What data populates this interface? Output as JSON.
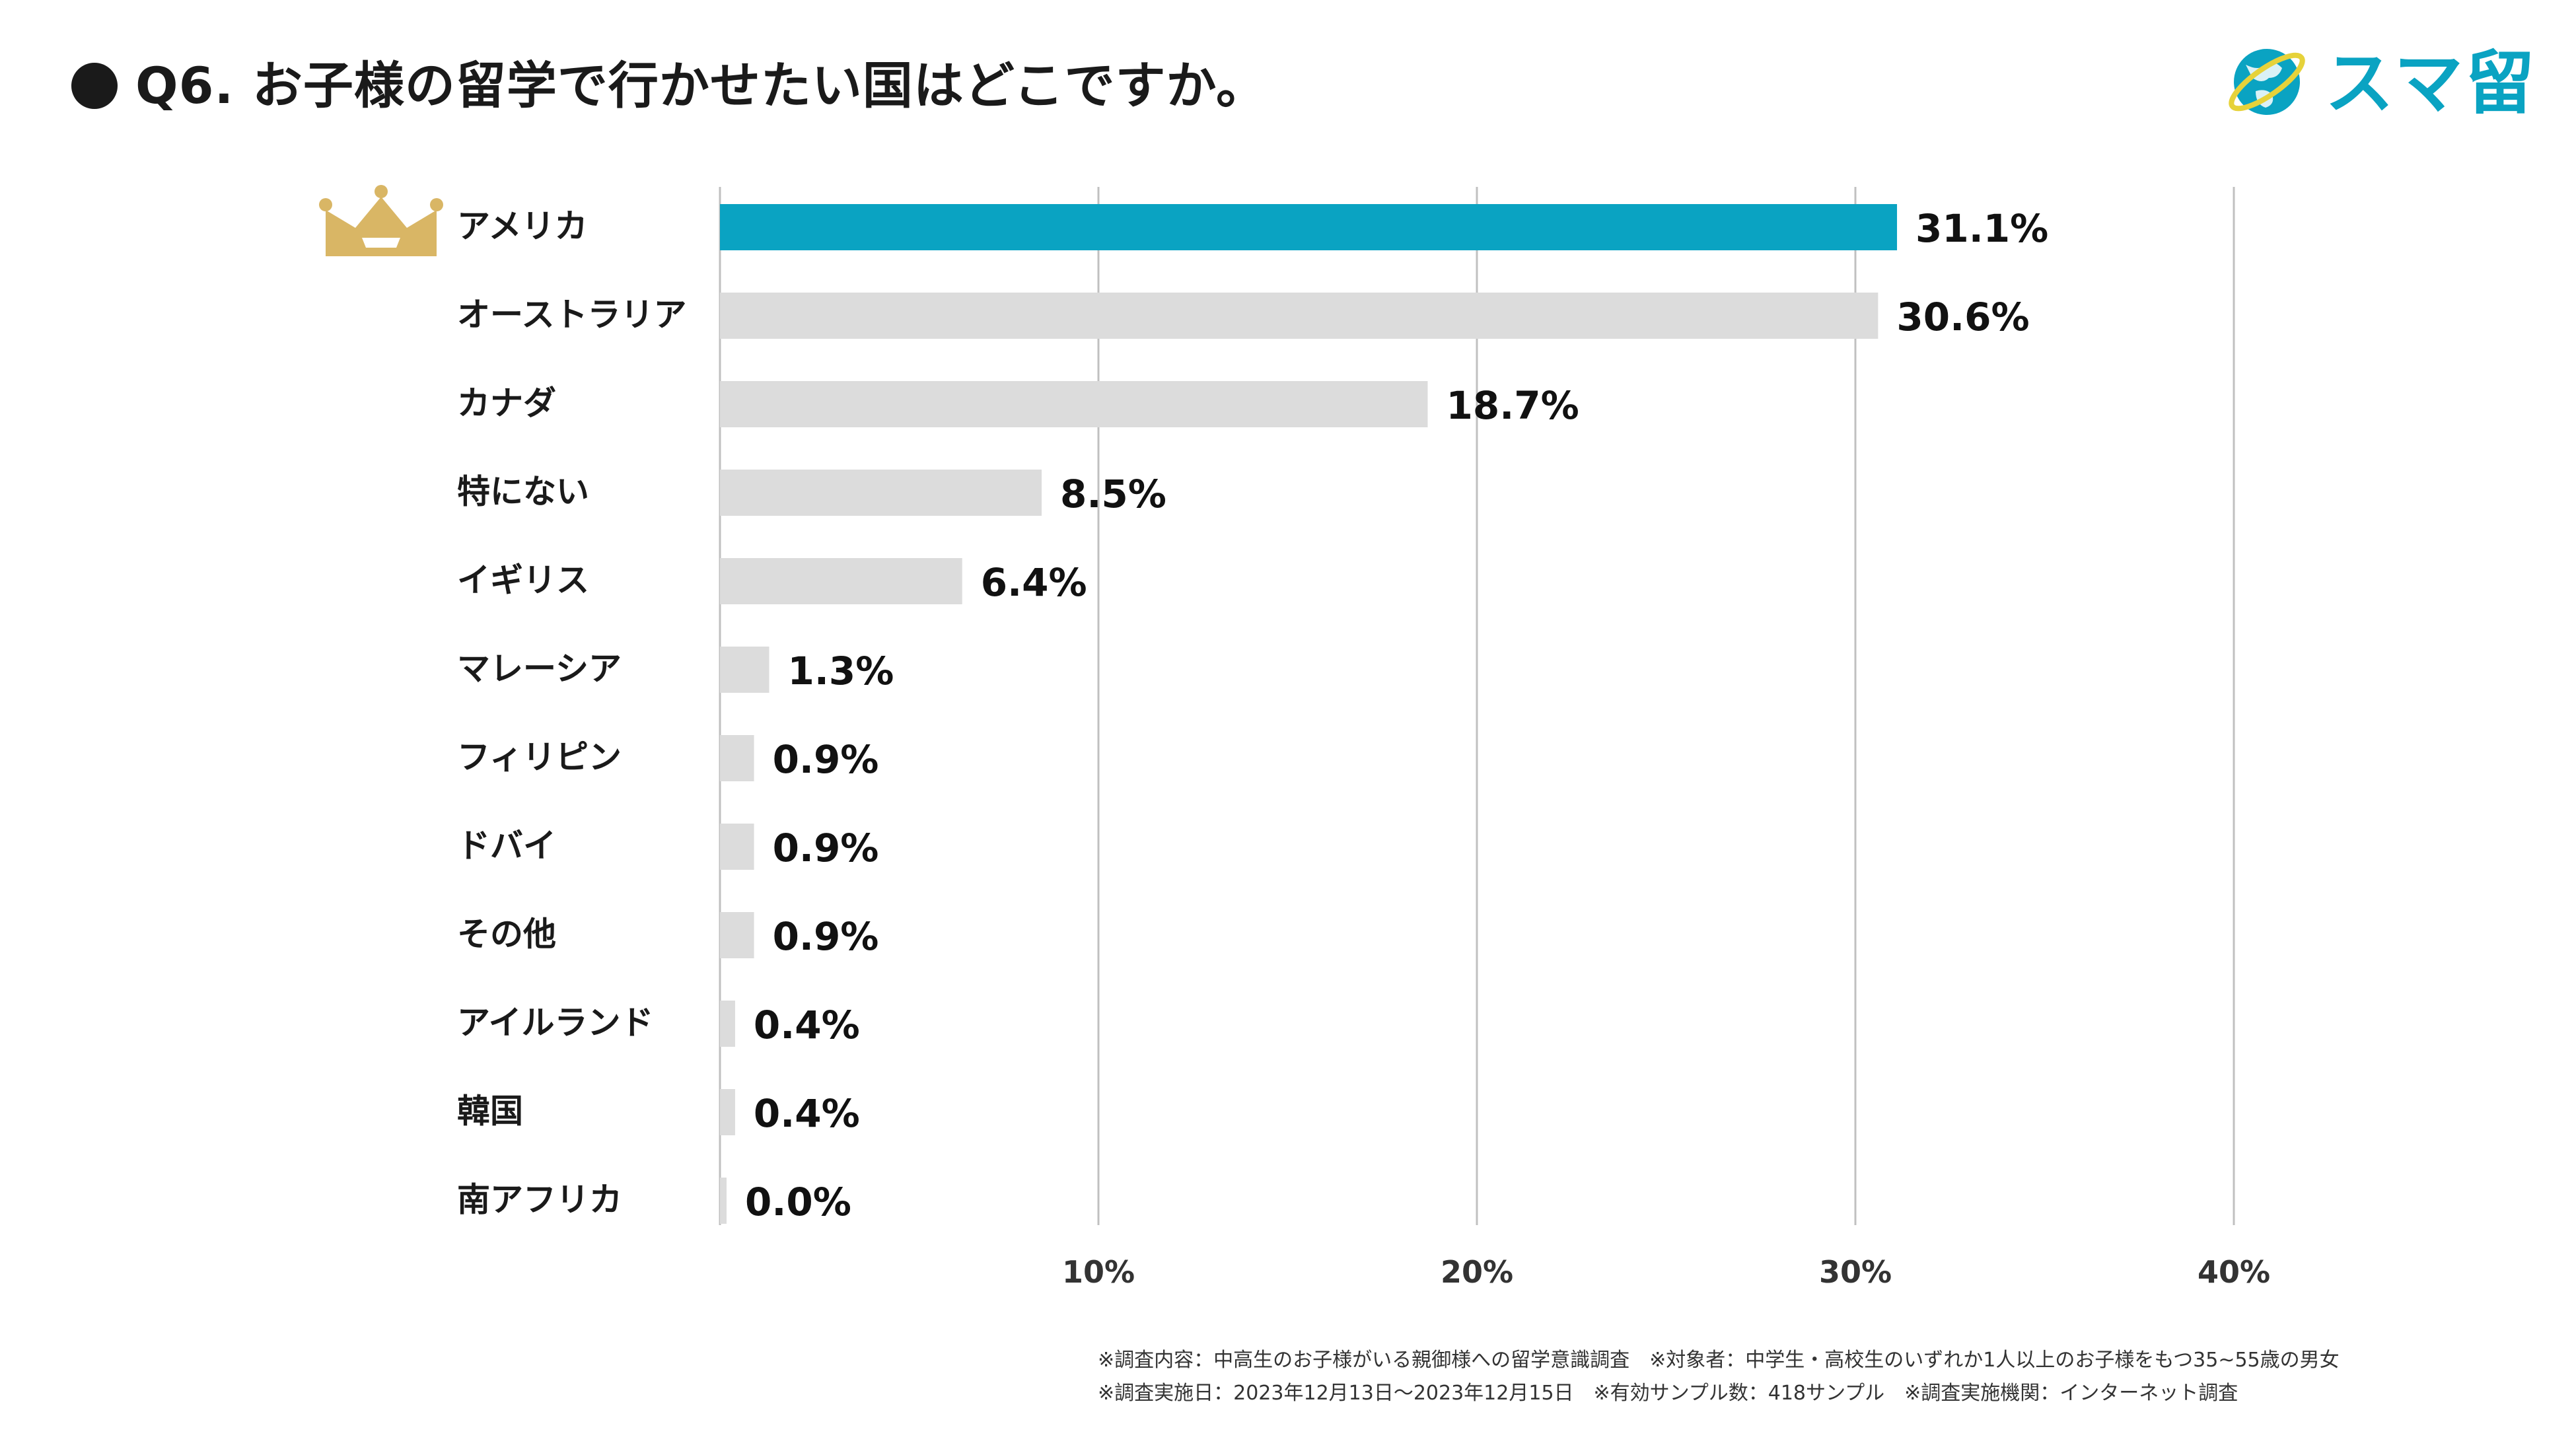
{
  "header": {
    "title": "Q6. お子様の留学で行かせたい国はどこですか。",
    "logo_text": "スマ留"
  },
  "colors": {
    "highlight": "#0aa3c2",
    "bar": "#dcdcdc",
    "grid": "#c0c0c0",
    "crown": "#d9b665"
  },
  "chart_data": {
    "type": "bar",
    "orientation": "horizontal",
    "categories": [
      "アメリカ",
      "オーストラリア",
      "カナダ",
      "特にない",
      "イギリス",
      "マレーシア",
      "フィリピン",
      "ドバイ",
      "その他",
      "アイルランド",
      "韓国",
      "南アフリカ"
    ],
    "values": [
      31.1,
      30.6,
      18.7,
      8.5,
      6.4,
      1.3,
      0.9,
      0.9,
      0.9,
      0.4,
      0.4,
      0.0
    ],
    "value_labels": [
      "31.1%",
      "30.6%",
      "18.7%",
      "8.5%",
      "6.4%",
      "1.3%",
      "0.9%",
      "0.9%",
      "0.9%",
      "0.4%",
      "0.4%",
      "0.0%"
    ],
    "xlim": [
      0,
      40
    ],
    "ticks": [
      10,
      20,
      30,
      40
    ],
    "tick_labels": [
      "10%",
      "20%",
      "30%",
      "40%"
    ],
    "grid": true,
    "highlight_index": 0
  },
  "footer": {
    "line1": "※調査内容：中高生のお子様がいる親御様への留学意識調査　※対象者：中学生・高校生のいずれか1人以上のお子様をもつ35~55歳の男女",
    "line2": "※調査実施日：2023年12月13日〜2023年12月15日　※有効サンプル数：418サンプル　※調査実施機関：インターネット調査"
  }
}
